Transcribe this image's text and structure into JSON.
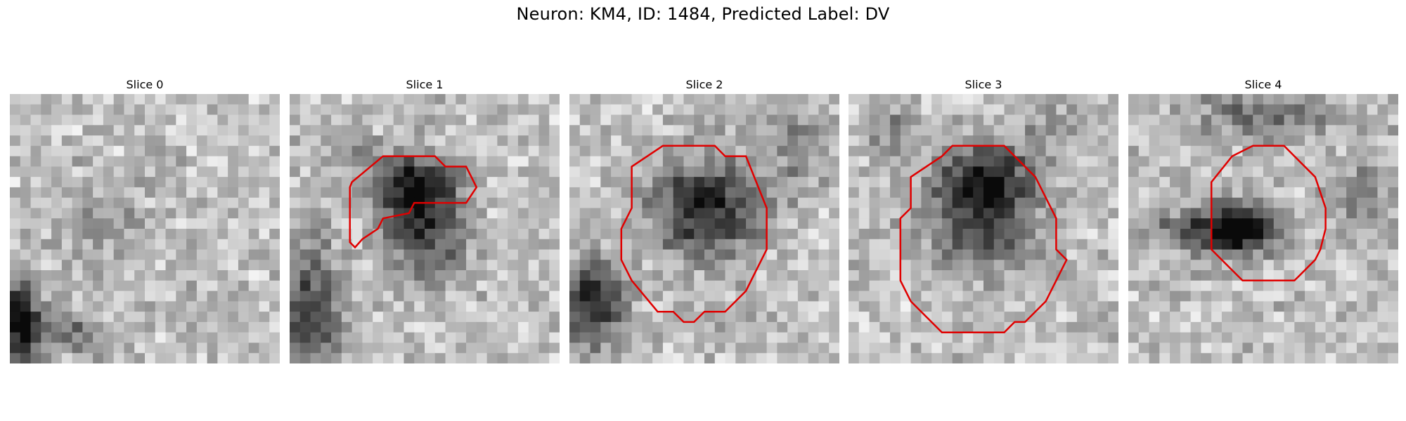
{
  "figure": {
    "title": "Neuron: KM4, ID: 1484, Predicted Label: DV"
  },
  "contour_color": "#e00000",
  "slices": [
    {
      "label": "Slice 0",
      "has_contour": false
    },
    {
      "label": "Slice 1",
      "has_contour": true
    },
    {
      "label": "Slice 2",
      "has_contour": true
    },
    {
      "label": "Slice 3",
      "has_contour": true
    },
    {
      "label": "Slice 4",
      "has_contour": true
    }
  ]
}
